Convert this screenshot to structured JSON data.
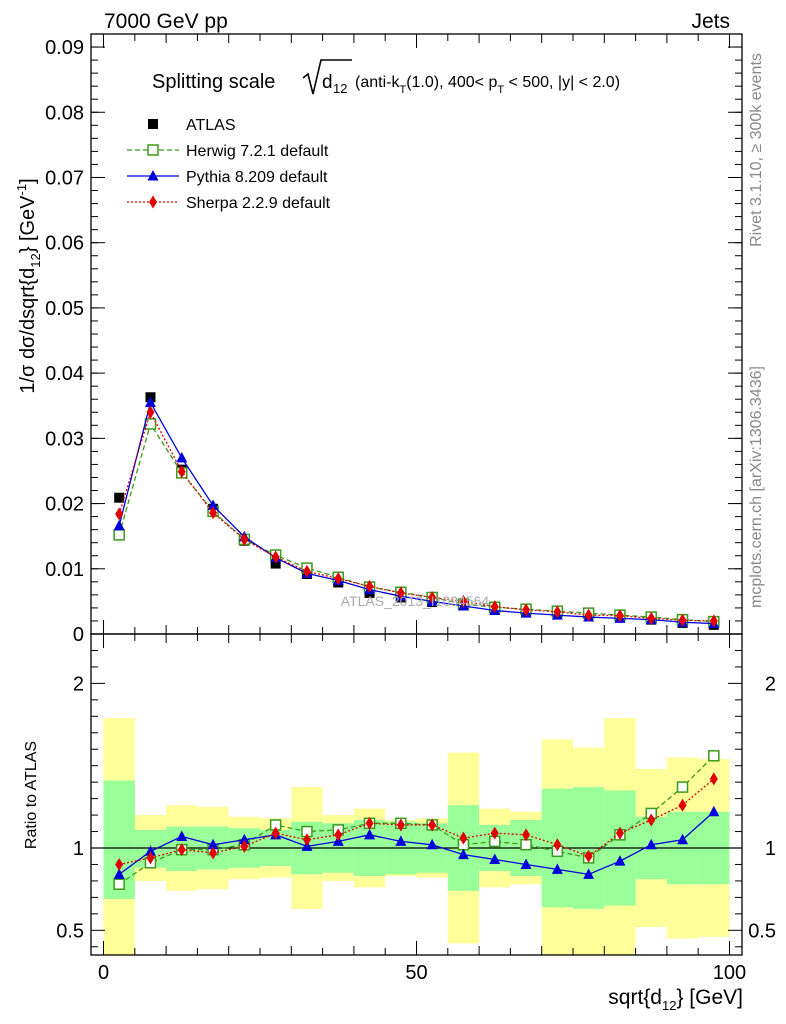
{
  "header": {
    "left": "7000 GeV pp",
    "right": "Jets"
  },
  "side_labels": {
    "rivet": "Rivet 3.1.10, ≥ 300k events",
    "mcplots": "mcplots.cern.ch [arXiv:1306.3436]"
  },
  "colors": {
    "atlas": "#000000",
    "herwig": "#3a9a1a",
    "pythia": "#0000dd",
    "sherpa": "#e00000",
    "band_inner": "#99ff99",
    "band_outer": "#ffff99"
  },
  "chart_data": [
    {
      "type": "line",
      "title": {
        "prefix": "Splitting scale",
        "radicand_base": "d",
        "radicand_sub": "12",
        "rest": " (anti-k",
        "sub1": "T",
        "rest2": "(1.0), 400< p",
        "sub2": "T",
        "rest3": " < 500, |y| < 2.0)"
      },
      "ylabel": "1/σ dσ/dsqrt{d_{12}} [GeV⁻¹]",
      "ylim": [
        0,
        0.092
      ],
      "yticks": [
        "0",
        "0.01",
        "0.02",
        "0.03",
        "0.04",
        "0.05",
        "0.06",
        "0.07",
        "0.08",
        "0.09"
      ],
      "watermark": "ATLAS_2013_I1094564",
      "x": [
        2.5,
        7.5,
        12.5,
        17.5,
        22.5,
        27.5,
        32.5,
        37.5,
        42.5,
        47.5,
        52.5,
        57.5,
        62.5,
        67.5,
        72.5,
        77.5,
        82.5,
        87.5,
        92.5,
        97.5
      ],
      "series": [
        {
          "name": "ATLAS",
          "style": "data",
          "values": [
            0.0209,
            0.0363,
            0.0252,
            0.0192,
            0.0143,
            0.0108,
            0.0092,
            0.0079,
            0.0063,
            0.0056,
            0.0049,
            0.0044,
            0.0039,
            0.0035,
            0.0033,
            0.0031,
            0.0026,
            0.0022,
            0.0017,
            0.0014
          ]
        },
        {
          "name": "Herwig 7.2.1 default",
          "style": "herwig",
          "values": [
            0.0152,
            0.0322,
            0.0247,
            0.0188,
            0.0145,
            0.0121,
            0.0101,
            0.0087,
            0.0072,
            0.0064,
            0.0056,
            0.0046,
            0.0041,
            0.0038,
            0.0035,
            0.0032,
            0.0029,
            0.0026,
            0.0022,
            0.0019
          ]
        },
        {
          "name": "Pythia 8.209 default",
          "style": "pythia",
          "values": [
            0.0166,
            0.0355,
            0.027,
            0.0197,
            0.0149,
            0.0117,
            0.0093,
            0.0082,
            0.0068,
            0.0058,
            0.005,
            0.0043,
            0.0036,
            0.0032,
            0.0029,
            0.0026,
            0.0024,
            0.0022,
            0.0018,
            0.0016
          ]
        },
        {
          "name": "Sherpa 2.2.9 default",
          "style": "sherpa",
          "values": [
            0.0184,
            0.034,
            0.0249,
            0.0186,
            0.0145,
            0.0118,
            0.0096,
            0.0085,
            0.0073,
            0.0063,
            0.0056,
            0.005,
            0.0042,
            0.0037,
            0.0034,
            0.0029,
            0.0028,
            0.0024,
            0.0021,
            0.002
          ]
        }
      ]
    },
    {
      "type": "line",
      "ylabel": "Ratio to ATLAS",
      "xlabel": "sqrt{d_{12}} [GeV]",
      "xlim": [
        -2,
        102
      ],
      "ylim": [
        0.35,
        2.3
      ],
      "yticks": [
        "0.5",
        "1",
        "2"
      ],
      "xticks": [
        "0",
        "50",
        "100"
      ],
      "bins": [
        [
          0,
          5
        ],
        [
          5,
          10
        ],
        [
          10,
          15
        ],
        [
          15,
          20
        ],
        [
          20,
          25
        ],
        [
          25,
          30
        ],
        [
          30,
          35
        ],
        [
          35,
          40
        ],
        [
          40,
          45
        ],
        [
          45,
          50
        ],
        [
          50,
          55
        ],
        [
          55,
          60
        ],
        [
          60,
          65
        ],
        [
          65,
          70
        ],
        [
          70,
          75
        ],
        [
          75,
          80
        ],
        [
          80,
          85
        ],
        [
          85,
          90
        ],
        [
          90,
          95
        ],
        [
          95,
          100
        ]
      ],
      "band_inner": [
        [
          0.69,
          1.41
        ],
        [
          0.88,
          1.11
        ],
        [
          0.86,
          1.13
        ],
        [
          0.87,
          1.13
        ],
        [
          0.88,
          1.12
        ],
        [
          0.89,
          1.11
        ],
        [
          0.84,
          1.16
        ],
        [
          0.85,
          1.15
        ],
        [
          0.83,
          1.17
        ],
        [
          0.84,
          1.16
        ],
        [
          0.85,
          1.15
        ],
        [
          0.74,
          1.26
        ],
        [
          0.86,
          1.14
        ],
        [
          0.83,
          1.17
        ],
        [
          0.64,
          1.36
        ],
        [
          0.63,
          1.37
        ],
        [
          0.65,
          1.35
        ],
        [
          0.81,
          1.19
        ],
        [
          0.78,
          1.22
        ],
        [
          0.78,
          1.22
        ]
      ],
      "band_outer": [
        [
          0.35,
          1.79
        ],
        [
          0.8,
          1.2
        ],
        [
          0.74,
          1.26
        ],
        [
          0.75,
          1.25
        ],
        [
          0.81,
          1.19
        ],
        [
          0.82,
          1.18
        ],
        [
          0.63,
          1.37
        ],
        [
          0.8,
          1.2
        ],
        [
          0.76,
          1.24
        ],
        [
          0.83,
          1.17
        ],
        [
          0.82,
          1.18
        ],
        [
          0.42,
          1.58
        ],
        [
          0.76,
          1.24
        ],
        [
          0.78,
          1.22
        ],
        [
          0.35,
          1.66
        ],
        [
          0.35,
          1.61
        ],
        [
          0.35,
          1.79
        ],
        [
          0.52,
          1.48
        ],
        [
          0.45,
          1.55
        ],
        [
          0.46,
          1.54
        ]
      ],
      "series": [
        {
          "name": "Herwig 7.2.1 default",
          "style": "herwig",
          "values": [
            0.78,
            0.91,
            0.99,
            0.99,
            1.02,
            1.14,
            1.1,
            1.11,
            1.15,
            1.15,
            1.14,
            1.02,
            1.04,
            1.02,
            0.98,
            0.94,
            1.08,
            1.21,
            1.37,
            1.56
          ]
        },
        {
          "name": "Pythia 8.209 default",
          "style": "pythia",
          "values": [
            0.84,
            0.98,
            1.07,
            1.02,
            1.05,
            1.08,
            1.01,
            1.04,
            1.08,
            1.04,
            1.02,
            0.96,
            0.93,
            0.9,
            0.87,
            0.84,
            0.92,
            1.02,
            1.05,
            1.22
          ]
        },
        {
          "name": "Sherpa 2.2.9 default",
          "style": "sherpa",
          "values": [
            0.9,
            0.94,
            0.99,
            0.97,
            1.01,
            1.09,
            1.05,
            1.08,
            1.15,
            1.14,
            1.14,
            1.06,
            1.09,
            1.08,
            1.02,
            0.95,
            1.09,
            1.17,
            1.26,
            1.42
          ]
        }
      ]
    }
  ]
}
